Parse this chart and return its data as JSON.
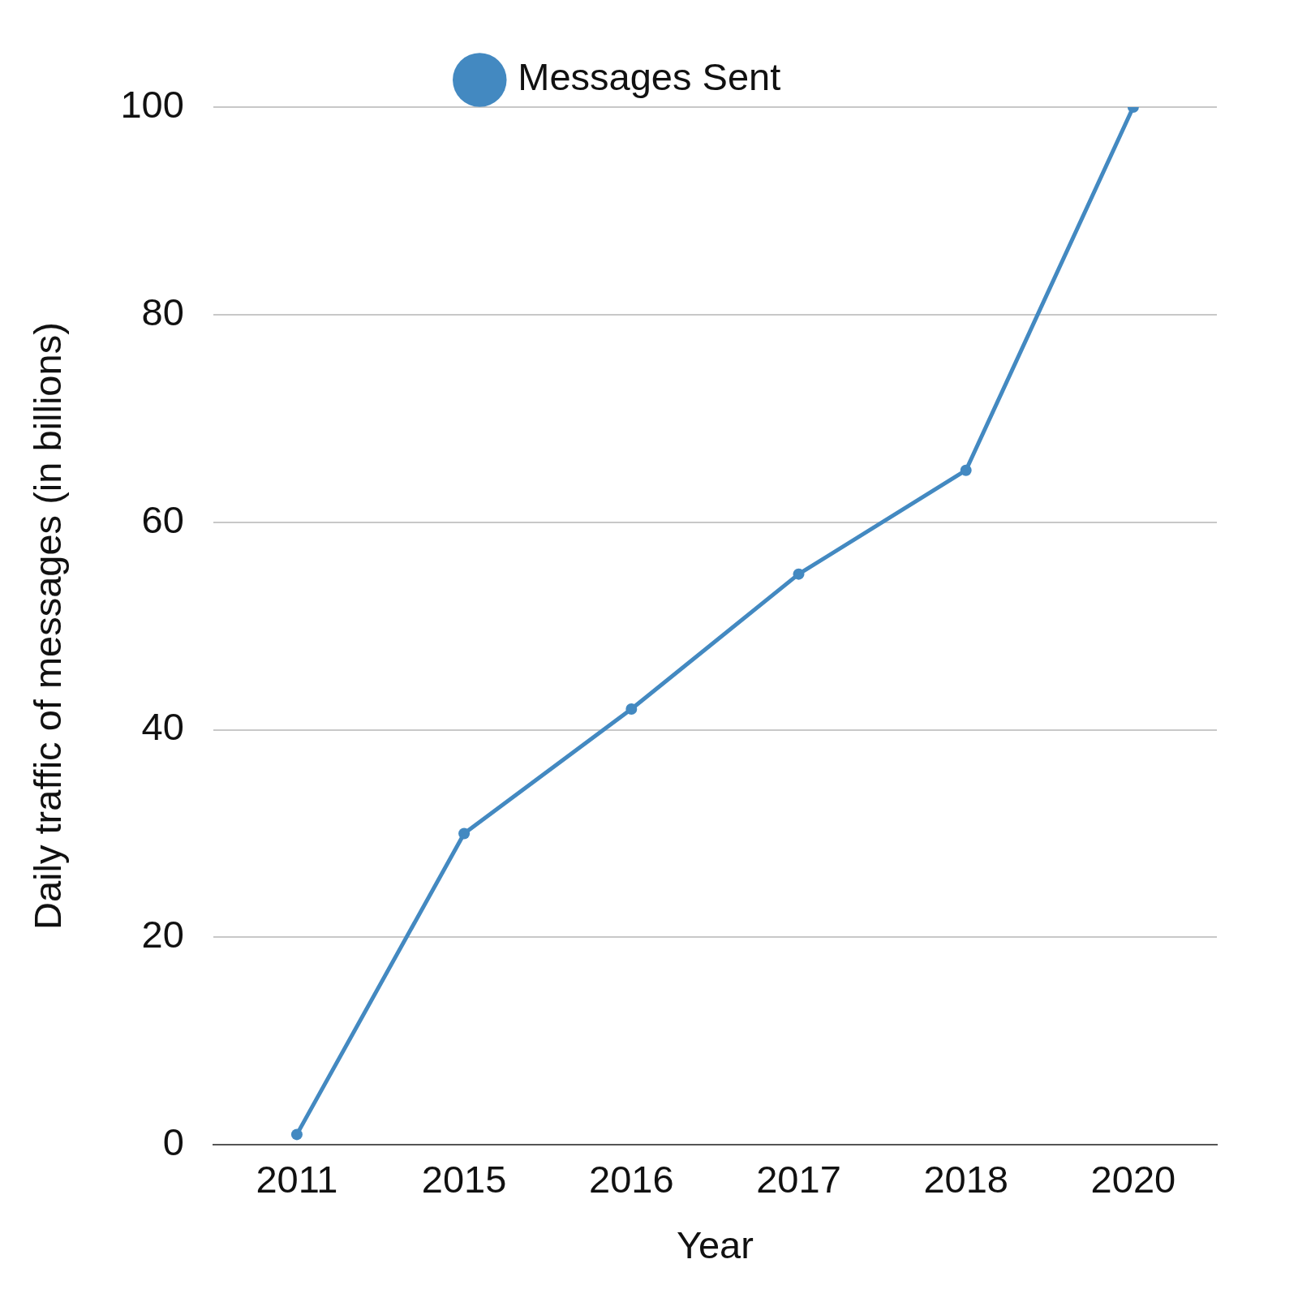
{
  "chart_data": {
    "type": "line",
    "xlabel": "Year",
    "ylabel": "Daily traffic of messages (in billions)",
    "categories": [
      "2011",
      "2015",
      "2016",
      "2017",
      "2018",
      "2020"
    ],
    "series": [
      {
        "name": "Messages Sent",
        "color": "#4389c1",
        "values": [
          1,
          30,
          42,
          55,
          65,
          100
        ]
      }
    ],
    "ylim": [
      0,
      100
    ],
    "yticks": [
      0,
      20,
      40,
      60,
      80,
      100
    ],
    "grid": "y",
    "legend": "top",
    "marker": "circle",
    "line_style": "solid"
  }
}
